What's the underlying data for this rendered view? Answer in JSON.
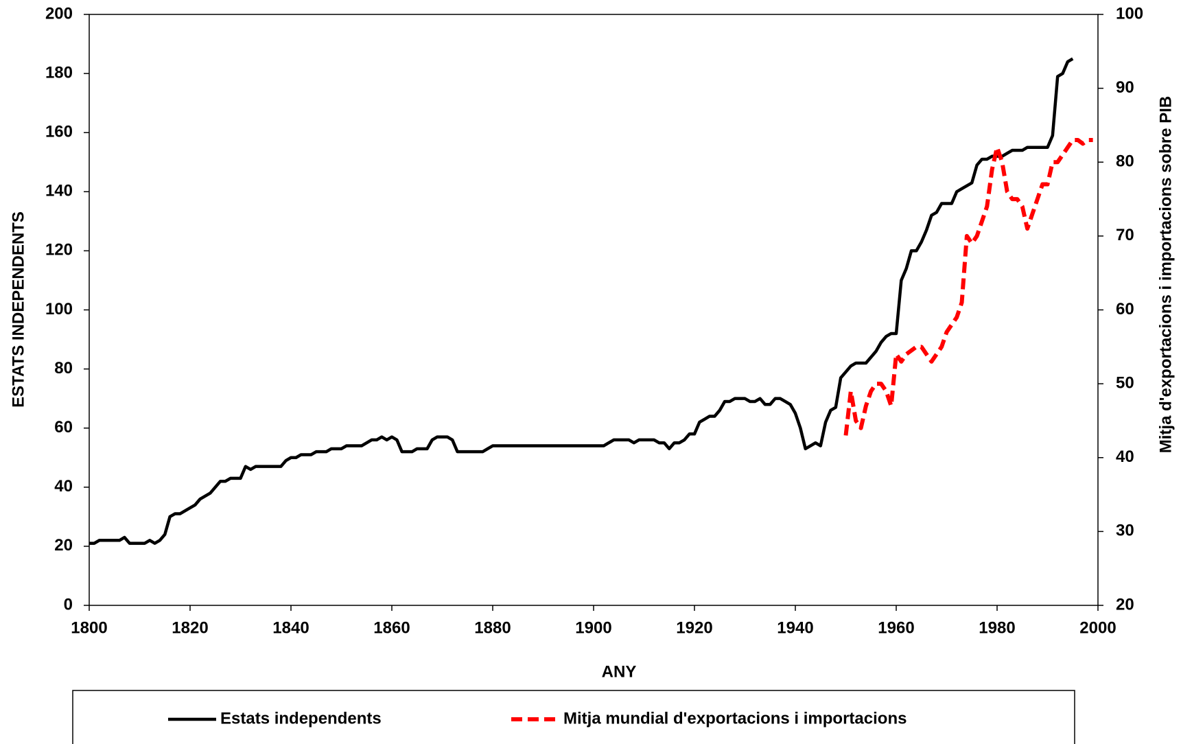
{
  "chart_data": {
    "type": "line",
    "x_label": "ANY",
    "y_label": "ESTATS INDEPENDENTS",
    "y2_label": "Mitja d'exportacions i importacions sobre PIB",
    "xlim": [
      1800,
      2000
    ],
    "xticks": [
      1800,
      1820,
      1840,
      1860,
      1880,
      1900,
      1920,
      1940,
      1960,
      1980,
      2000
    ],
    "ylim": [
      0,
      200
    ],
    "yticks": [
      0,
      20,
      40,
      60,
      80,
      100,
      120,
      140,
      160,
      180,
      200
    ],
    "y2lim": [
      20,
      100
    ],
    "y2ticks": [
      20,
      30,
      40,
      50,
      60,
      70,
      80,
      90,
      100
    ],
    "legend": "bottom",
    "series": [
      {
        "name": "Estats independents",
        "color": "#000000",
        "dashed": false,
        "x": [
          1800,
          1801,
          1802,
          1803,
          1806,
          1807,
          1808,
          1811,
          1812,
          1813,
          1814,
          1815,
          1816,
          1817,
          1818,
          1820,
          1821,
          1822,
          1824,
          1826,
          1827,
          1828,
          1830,
          1831,
          1832,
          1833,
          1838,
          1839,
          1840,
          1841,
          1842,
          1844,
          1845,
          1847,
          1848,
          1850,
          1851,
          1854,
          1856,
          1857,
          1858,
          1859,
          1860,
          1861,
          1862,
          1864,
          1865,
          1867,
          1868,
          1869,
          1871,
          1872,
          1873,
          1878,
          1879,
          1880,
          1902,
          1903,
          1904,
          1907,
          1908,
          1909,
          1912,
          1913,
          1914,
          1915,
          1916,
          1917,
          1918,
          1919,
          1920,
          1921,
          1922,
          1923,
          1924,
          1925,
          1926,
          1927,
          1928,
          1930,
          1931,
          1932,
          1933,
          1934,
          1935,
          1936,
          1937,
          1938,
          1939,
          1940,
          1941,
          1942,
          1943,
          1944,
          1945,
          1946,
          1947,
          1948,
          1949,
          1950,
          1951,
          1952,
          1954,
          1955,
          1956,
          1957,
          1958,
          1959,
          1960,
          1961,
          1962,
          1963,
          1964,
          1965,
          1966,
          1967,
          1968,
          1969,
          1971,
          1972,
          1973,
          1974,
          1975,
          1976,
          1977,
          1978,
          1979,
          1981,
          1982,
          1983,
          1985,
          1986,
          1990,
          1991,
          1992,
          1993,
          1994,
          1995
        ],
        "values": [
          21,
          21,
          22,
          22,
          22,
          23,
          21,
          21,
          22,
          21,
          22,
          24,
          30,
          31,
          31,
          33,
          34,
          36,
          38,
          42,
          42,
          43,
          43,
          47,
          46,
          47,
          47,
          49,
          50,
          50,
          51,
          51,
          52,
          52,
          53,
          53,
          54,
          54,
          56,
          56,
          57,
          56,
          57,
          56,
          52,
          52,
          53,
          53,
          56,
          57,
          57,
          56,
          52,
          52,
          53,
          54,
          54,
          55,
          56,
          56,
          55,
          56,
          56,
          55,
          55,
          53,
          55,
          55,
          56,
          58,
          58,
          62,
          63,
          64,
          64,
          66,
          69,
          69,
          70,
          70,
          69,
          69,
          70,
          68,
          68,
          70,
          70,
          69,
          68,
          65,
          60,
          53,
          54,
          55,
          54,
          62,
          66,
          67,
          77,
          79,
          81,
          82,
          82,
          84,
          86,
          89,
          91,
          92,
          92,
          110,
          114,
          120,
          120,
          123,
          127,
          132,
          133,
          136,
          136,
          140,
          141,
          142,
          143,
          149,
          151,
          151,
          152,
          152,
          153,
          154,
          154,
          155,
          155,
          159,
          179,
          180,
          184,
          185
        ]
      },
      {
        "name": "Mitja mundial d'exportacions i importacions",
        "color": "#ff0000",
        "dashed": true,
        "axis": "y2",
        "x": [
          1950,
          1951,
          1952,
          1953,
          1954,
          1955,
          1956,
          1957,
          1958,
          1959,
          1960,
          1961,
          1962,
          1963,
          1964,
          1965,
          1966,
          1967,
          1968,
          1969,
          1970,
          1971,
          1972,
          1973,
          1974,
          1975,
          1976,
          1977,
          1978,
          1979,
          1980,
          1981,
          1982,
          1983,
          1984,
          1985,
          1986,
          1987,
          1988,
          1989,
          1990,
          1991,
          1992,
          1993,
          1994,
          1995,
          1996,
          1997,
          1998,
          1999
        ],
        "values": [
          43,
          49,
          45,
          44,
          47,
          49,
          50,
          50,
          49,
          47,
          54,
          53,
          54,
          54.5,
          55,
          55,
          54,
          53,
          54,
          55,
          57,
          58,
          59,
          61,
          70,
          69,
          70,
          72,
          74,
          79,
          82,
          80,
          76,
          75,
          75,
          74,
          71,
          73,
          75,
          77,
          77,
          80,
          80,
          81,
          82,
          83,
          83,
          82.5,
          83,
          83
        ]
      }
    ]
  }
}
